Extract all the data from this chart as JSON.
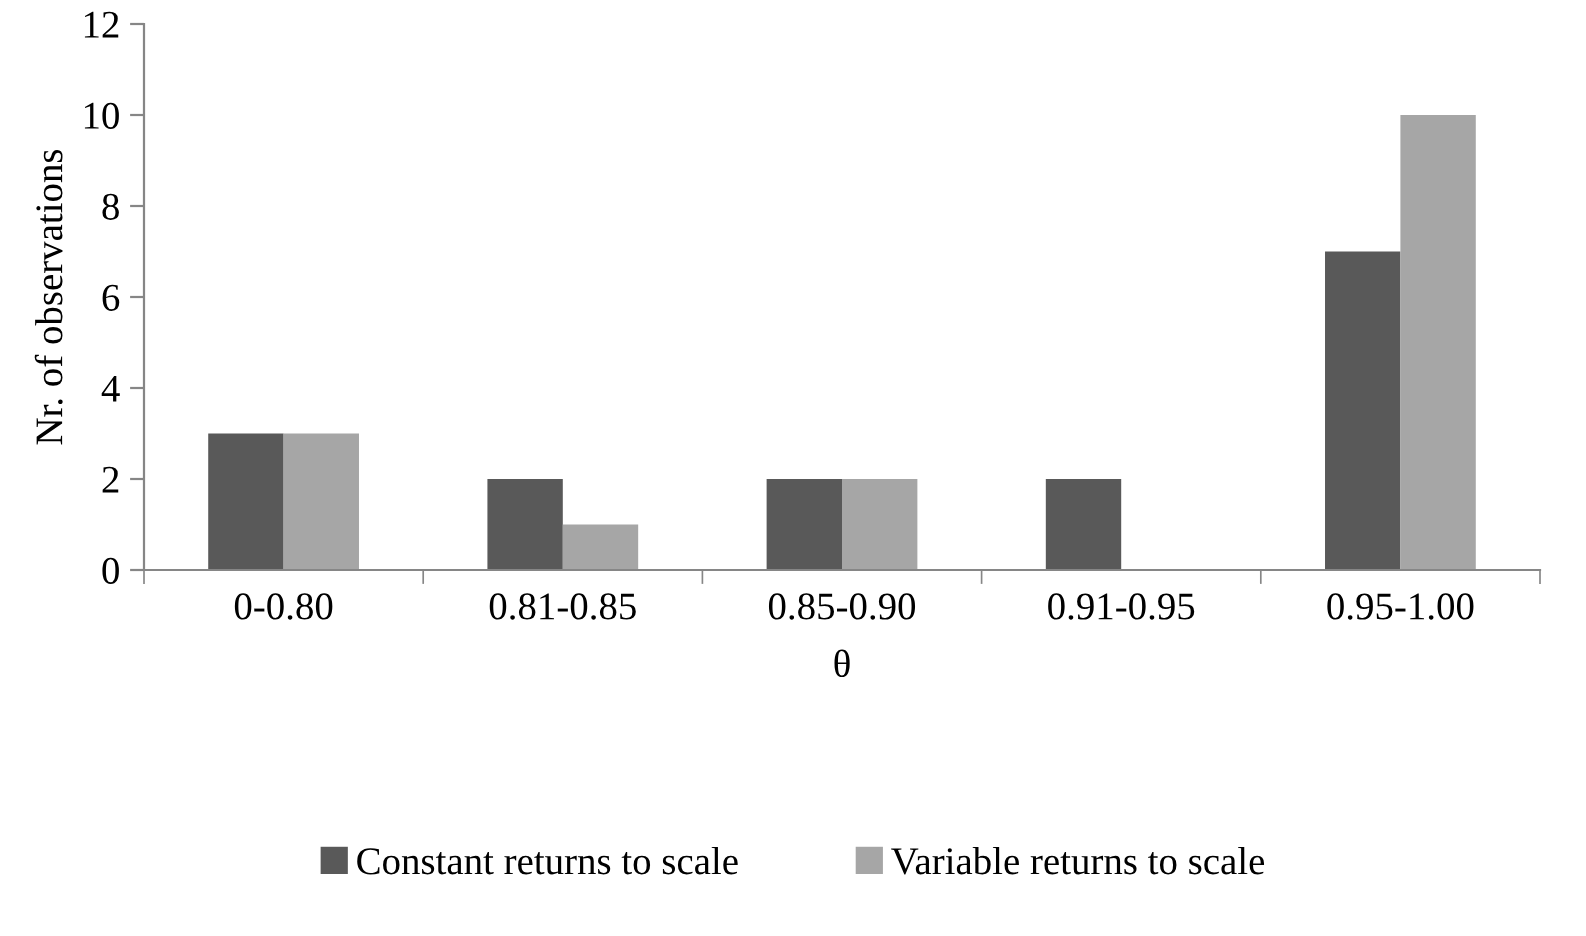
{
  "chart_data": {
    "type": "bar",
    "xlabel": "θ",
    "ylabel": "Nr. of observations",
    "categories": [
      "0-0.80",
      "0.81-0.85",
      "0.85-0.90",
      "0.91-0.95",
      "0.95-1.00"
    ],
    "series": [
      {
        "name": "Constant returns to scale",
        "color": "#595959",
        "values": [
          3,
          2,
          2,
          2,
          7
        ]
      },
      {
        "name": "Variable returns to scale",
        "color": "#a6a6a6",
        "values": [
          3,
          1,
          2,
          0,
          10
        ]
      }
    ],
    "ylim": [
      0,
      12
    ],
    "yticks": [
      0,
      2,
      4,
      6,
      8,
      10,
      12
    ],
    "grid": false,
    "legend": "bottom"
  }
}
